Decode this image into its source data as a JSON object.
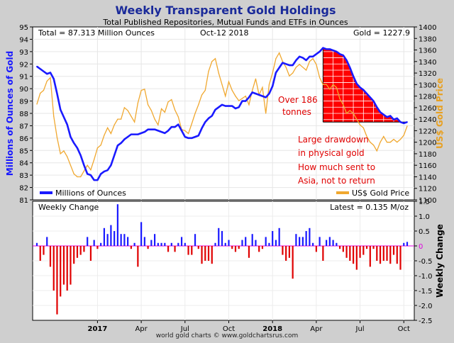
{
  "chart_data": {
    "type": "line",
    "title": "Weekly Transparent Gold Holdings",
    "subtitle": "Total Published Repositories, Mutual Funds and ETFs in Ounces",
    "header_left": "Total = 87.313 Million Ounces",
    "header_date": "Oct-12  2018",
    "header_right": "Gold = 1227.9",
    "ylabel_left": "Millions of Ounces of Gold",
    "ylabel_right": "US$ Gold Price",
    "ylim_left": [
      81,
      95
    ],
    "ylim_right": [
      1100,
      1400
    ],
    "yticks_left": [
      "81",
      "82",
      "83",
      "84",
      "85",
      "86",
      "87",
      "88",
      "89",
      "90",
      "91",
      "92",
      "93",
      "94",
      "95"
    ],
    "yticks_right": [
      "1100",
      "1120",
      "1140",
      "1160",
      "1180",
      "1200",
      "1220",
      "1240",
      "1260",
      "1280",
      "1300",
      "1320",
      "1340",
      "1360",
      "1380",
      "1400"
    ],
    "xticks": [
      {
        "label": "2017",
        "week": 18,
        "bold": true
      },
      {
        "label": "Apr",
        "week": 31,
        "bold": false
      },
      {
        "label": "Jul",
        "week": 44,
        "bold": false
      },
      {
        "label": "Oct",
        "week": 57,
        "bold": false
      },
      {
        "label": "2018",
        "week": 70,
        "bold": true
      },
      {
        "label": "Apr",
        "week": 83,
        "bold": false
      },
      {
        "label": "Jul",
        "week": 96,
        "bold": false
      },
      {
        "label": "Oct",
        "week": 109,
        "bold": false
      }
    ],
    "weeks": 111,
    "series": [
      {
        "name": "Millions of Ounces",
        "axis": "left",
        "color": "#1a1aff",
        "values": [
          91.8,
          91.6,
          91.4,
          91.2,
          91.3,
          90.8,
          89.6,
          88.3,
          87.7,
          87.1,
          86.1,
          85.6,
          85.2,
          84.6,
          83.8,
          83.1,
          83.0,
          82.6,
          82.6,
          83.1,
          83.3,
          83.4,
          83.8,
          84.6,
          85.4,
          85.6,
          85.9,
          86.1,
          86.3,
          86.3,
          86.3,
          86.4,
          86.5,
          86.7,
          86.7,
          86.7,
          86.6,
          86.5,
          86.4,
          86.6,
          86.9,
          86.9,
          87.1,
          86.6,
          86.1,
          86.0,
          86.0,
          86.1,
          86.2,
          86.8,
          87.3,
          87.6,
          87.8,
          88.3,
          88.5,
          88.7,
          88.6,
          88.6,
          88.6,
          88.4,
          88.5,
          89.0,
          89.0,
          89.3,
          89.7,
          89.6,
          89.5,
          89.4,
          89.3,
          89.6,
          90.2,
          91.3,
          91.7,
          92.1,
          92.0,
          91.9,
          91.9,
          92.3,
          92.6,
          92.5,
          92.3,
          92.6,
          92.6,
          92.8,
          93.0,
          93.3,
          93.2,
          93.2,
          93.1,
          93.0,
          92.8,
          92.7,
          92.3,
          91.7,
          91.0,
          90.4,
          90.1,
          89.9,
          89.6,
          89.3,
          89.0,
          88.5,
          88.1,
          87.9,
          87.7,
          87.8,
          87.5,
          87.6,
          87.3,
          87.2,
          87.3
        ]
      },
      {
        "name": "US$ Gold Price",
        "axis": "right",
        "color": "#f0a830",
        "values": [
          1266,
          1285,
          1290,
          1306,
          1312,
          1245,
          1208,
          1180,
          1185,
          1175,
          1160,
          1145,
          1140,
          1140,
          1150,
          1160,
          1152,
          1170,
          1190,
          1195,
          1212,
          1225,
          1215,
          1230,
          1240,
          1240,
          1260,
          1255,
          1245,
          1235,
          1268,
          1290,
          1292,
          1265,
          1255,
          1240,
          1230,
          1258,
          1252,
          1270,
          1274,
          1256,
          1244,
          1222,
          1220,
          1215,
          1232,
          1250,
          1265,
          1282,
          1290,
          1323,
          1340,
          1345,
          1320,
          1300,
          1280,
          1305,
          1290,
          1280,
          1272,
          1276,
          1280,
          1265,
          1290,
          1310,
          1282,
          1295,
          1250,
          1300,
          1320,
          1345,
          1355,
          1340,
          1330,
          1315,
          1320,
          1330,
          1335,
          1330,
          1325,
          1340,
          1345,
          1335,
          1312,
          1300,
          1300,
          1292,
          1300,
          1295,
          1275,
          1265,
          1250,
          1255,
          1250,
          1240,
          1230,
          1225,
          1210,
          1200,
          1195,
          1185,
          1200,
          1210,
          1200,
          1200,
          1205,
          1200,
          1205,
          1212,
          1228
        ]
      },
      {
        "name": "Weekly Change",
        "axis": "lower",
        "type": "bar",
        "ylim": [
          -2.5,
          1.5
        ],
        "yticks": [
          "1.5",
          "1.0",
          "0.5",
          "0",
          "-0.5",
          "-1.0",
          "-1.5",
          "-2.0",
          "-2.5"
        ],
        "latest": "Latest = 0.135 M/oz",
        "positive_color": "#1a1aff",
        "negative_color": "#e00000",
        "values": [
          0.1,
          -0.5,
          -0.3,
          0.3,
          -0.7,
          -1.5,
          -2.3,
          -1.7,
          -1.3,
          -1.5,
          -1.3,
          -0.6,
          -0.4,
          -0.3,
          -0.2,
          0.3,
          -0.5,
          0.2,
          -0.1,
          0.1,
          0.6,
          0.4,
          0.7,
          0.5,
          1.4,
          0.4,
          0.4,
          0.3,
          -0.1,
          0.1,
          -0.7,
          0.8,
          0.3,
          -0.1,
          0.2,
          0.4,
          0.1,
          0.1,
          0.1,
          -0.2,
          0.1,
          -0.2,
          0.1,
          0.3,
          0.1,
          -0.3,
          -0.3,
          0.4,
          -0.1,
          -0.6,
          -0.5,
          -0.5,
          -0.6,
          0.1,
          0.6,
          0.5,
          0.1,
          0.2,
          -0.1,
          -0.2,
          -0.1,
          0.2,
          0.3,
          -0.4,
          0.4,
          0.2,
          -0.2,
          -0.1,
          0.3,
          0.1,
          0.5,
          0.2,
          0.6,
          -0.3,
          -0.5,
          -0.4,
          -1.1,
          0.4,
          0.3,
          0.3,
          0.5,
          0.6,
          0.1,
          -0.2,
          0.3,
          -0.5,
          0.2,
          0.3,
          0.2,
          0.1,
          -0.1,
          -0.2,
          -0.4,
          -0.5,
          -0.6,
          -0.8,
          -0.4,
          -0.3,
          -0.1,
          -0.7,
          -0.1,
          -0.5,
          -0.6,
          -0.5,
          -0.5,
          -0.6,
          -0.3,
          -0.6,
          -0.8,
          0.1,
          0.135
        ]
      }
    ],
    "legend": [
      "Millions of Ounces",
      "US$ Gold Price"
    ],
    "annotations": [
      "Over 186",
      "tonnes",
      "Large drawdown",
      "in physical gold",
      "How much sent to",
      "Asia, not to return"
    ],
    "footer": "world gold charts © www.goldchartsrus.com",
    "lower_title": "Weekly Change"
  }
}
